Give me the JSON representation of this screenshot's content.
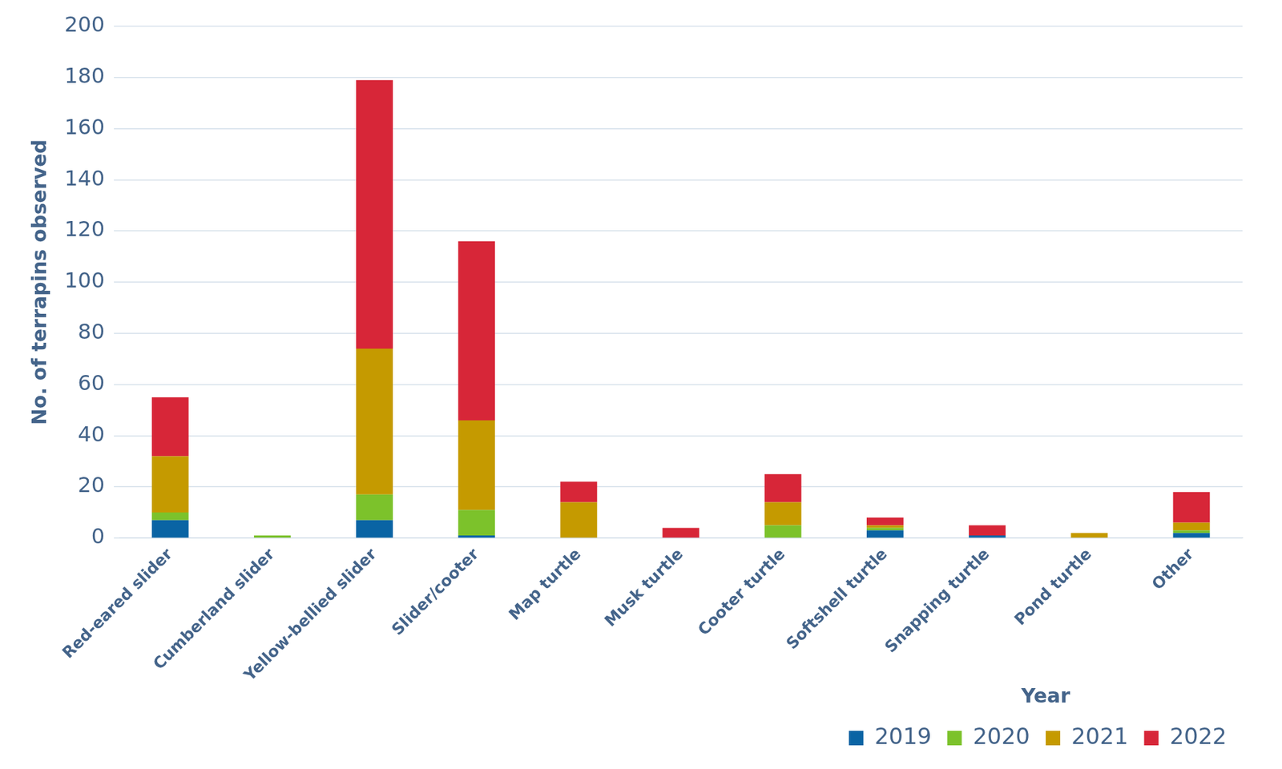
{
  "chart_data": {
    "type": "bar",
    "stacked": true,
    "y_label": "No. of terrapins observed",
    "legend_title": "Year",
    "legend": "bottom",
    "grid": true,
    "categories": [
      "Red-eared slider",
      "Cumberland slider",
      "Yellow-bellied slider",
      "Slider/cooter",
      "Map turtle",
      "Musk turtle",
      "Cooter turtle",
      "Softshell turtle",
      "Snapping turtle",
      "Pond turtle",
      "Other"
    ],
    "series": [
      {
        "name": "2019",
        "color": "#0a64a4",
        "values": [
          7,
          0,
          7,
          1,
          0,
          0,
          0,
          3,
          1,
          0,
          2
        ]
      },
      {
        "name": "2020",
        "color": "#7cc22b",
        "values": [
          3,
          1,
          10,
          10,
          0,
          0,
          5,
          1,
          0,
          0,
          1
        ]
      },
      {
        "name": "2021",
        "color": "#c59a00",
        "values": [
          22,
          0,
          57,
          35,
          14,
          0,
          9,
          1,
          0,
          2,
          3
        ]
      },
      {
        "name": "2022",
        "color": "#d72638",
        "values": [
          23,
          0,
          105,
          70,
          8,
          4,
          11,
          3,
          4,
          0,
          12
        ]
      }
    ],
    "ylim": [
      0,
      200
    ],
    "yticks": [
      0,
      20,
      40,
      60,
      80,
      100,
      120,
      140,
      160,
      180,
      200
    ]
  }
}
